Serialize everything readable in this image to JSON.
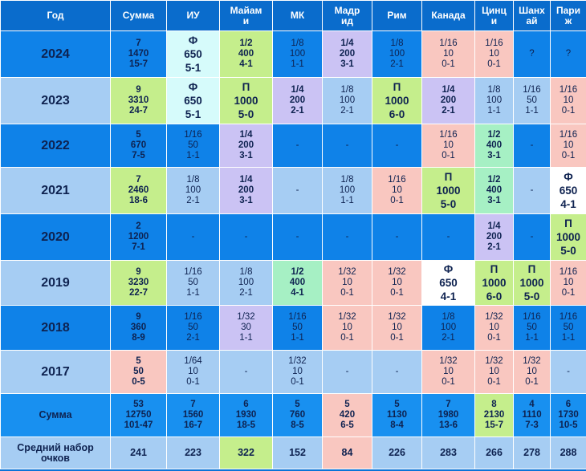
{
  "headers": [
    "Год",
    "Сумма",
    "ИУ",
    "Майам\nи",
    "МК",
    "Мадр\nид",
    "Рим",
    "Канада",
    "Цинц\nи",
    "Шанх\nай",
    "Пари\nж"
  ],
  "rows": [
    {
      "year": "2024",
      "tone": "dark",
      "cells": [
        {
          "t": "7\n1470\n15-7",
          "c": "dark",
          "w": "b"
        },
        {
          "t": "Ф\n650\n5-1",
          "c": "cyan",
          "w": "big"
        },
        {
          "t": "1/2\n400\n4-1",
          "c": "green",
          "w": "b"
        },
        {
          "t": "1/8\n100\n1-1",
          "c": "dark",
          "w": ""
        },
        {
          "t": "1/4\n200\n3-1",
          "c": "lav",
          "w": "b"
        },
        {
          "t": "1/8\n100\n2-1",
          "c": "dark",
          "w": ""
        },
        {
          "t": "1/16\n10\n0-1",
          "c": "pink",
          "w": ""
        },
        {
          "t": "1/16\n10\n0-1",
          "c": "pink",
          "w": ""
        },
        {
          "t": "?",
          "c": "dark",
          "w": ""
        },
        {
          "t": "?",
          "c": "dark",
          "w": ""
        }
      ]
    },
    {
      "year": "2023",
      "tone": "light",
      "cells": [
        {
          "t": "9\n3310\n24-7",
          "c": "green",
          "w": "b"
        },
        {
          "t": "Ф\n650\n5-1",
          "c": "cyan",
          "w": "big"
        },
        {
          "t": "П\n1000\n5-0",
          "c": "green",
          "w": "big"
        },
        {
          "t": "1/4\n200\n2-1",
          "c": "lav",
          "w": "b"
        },
        {
          "t": "1/8\n100\n2-1",
          "c": "light",
          "w": ""
        },
        {
          "t": "П\n1000\n6-0",
          "c": "green",
          "w": "big"
        },
        {
          "t": "1/4\n200\n2-1",
          "c": "lav",
          "w": "b"
        },
        {
          "t": "1/8\n100\n1-1",
          "c": "light",
          "w": ""
        },
        {
          "t": "1/16\n50\n1-1",
          "c": "light",
          "w": ""
        },
        {
          "t": "1/16\n10\n0-1",
          "c": "pink",
          "w": ""
        }
      ]
    },
    {
      "year": "2022",
      "tone": "dark",
      "cells": [
        {
          "t": "5\n670\n7-5",
          "c": "dark",
          "w": "b"
        },
        {
          "t": "1/16\n50\n1-1",
          "c": "dark",
          "w": ""
        },
        {
          "t": "1/4\n200\n3-1",
          "c": "lav",
          "w": "b"
        },
        {
          "t": "-",
          "c": "dark",
          "w": ""
        },
        {
          "t": "-",
          "c": "dark",
          "w": ""
        },
        {
          "t": "-",
          "c": "dark",
          "w": ""
        },
        {
          "t": "1/16\n10\n0-1",
          "c": "pink",
          "w": ""
        },
        {
          "t": "1/2\n400\n3-1",
          "c": "mint",
          "w": "b"
        },
        {
          "t": "-",
          "c": "dark",
          "w": ""
        },
        {
          "t": "1/16\n10\n0-1",
          "c": "pink",
          "w": ""
        }
      ]
    },
    {
      "year": "2021",
      "tone": "light",
      "cells": [
        {
          "t": "7\n2460\n18-6",
          "c": "green",
          "w": "b"
        },
        {
          "t": "1/8\n100\n2-1",
          "c": "light",
          "w": ""
        },
        {
          "t": "1/4\n200\n3-1",
          "c": "lav",
          "w": "b"
        },
        {
          "t": "-",
          "c": "light",
          "w": ""
        },
        {
          "t": "1/8\n100\n1-1",
          "c": "light",
          "w": ""
        },
        {
          "t": "1/16\n10\n0-1",
          "c": "pink",
          "w": ""
        },
        {
          "t": "П\n1000\n5-0",
          "c": "green",
          "w": "big"
        },
        {
          "t": "1/2\n400\n3-1",
          "c": "mint",
          "w": "b"
        },
        {
          "t": "-",
          "c": "light",
          "w": ""
        },
        {
          "t": "Ф\n650\n4-1",
          "c": "white",
          "w": "big"
        }
      ]
    },
    {
      "year": "2020",
      "tone": "dark",
      "cells": [
        {
          "t": "2\n1200\n7-1",
          "c": "dark",
          "w": "b"
        },
        {
          "t": "-",
          "c": "dark",
          "w": ""
        },
        {
          "t": "-",
          "c": "dark",
          "w": ""
        },
        {
          "t": "-",
          "c": "dark",
          "w": ""
        },
        {
          "t": "-",
          "c": "dark",
          "w": ""
        },
        {
          "t": "-",
          "c": "dark",
          "w": ""
        },
        {
          "t": "-",
          "c": "dark",
          "w": ""
        },
        {
          "t": "1/4\n200\n2-1",
          "c": "lav",
          "w": "b"
        },
        {
          "t": "-",
          "c": "dark",
          "w": ""
        },
        {
          "t": "П\n1000\n5-0",
          "c": "green",
          "w": "big"
        }
      ]
    },
    {
      "year": "2019",
      "tone": "light",
      "cells": [
        {
          "t": "9\n3230\n22-7",
          "c": "green",
          "w": "b"
        },
        {
          "t": "1/16\n50\n1-1",
          "c": "light",
          "w": ""
        },
        {
          "t": "1/8\n100\n2-1",
          "c": "light",
          "w": ""
        },
        {
          "t": "1/2\n400\n4-1",
          "c": "mint",
          "w": "b"
        },
        {
          "t": "1/32\n10\n0-1",
          "c": "pink",
          "w": ""
        },
        {
          "t": "1/32\n10\n0-1",
          "c": "pink",
          "w": ""
        },
        {
          "t": "Ф\n650\n4-1",
          "c": "white",
          "w": "big"
        },
        {
          "t": "П\n1000\n6-0",
          "c": "green",
          "w": "big"
        },
        {
          "t": "П\n1000\n5-0",
          "c": "green",
          "w": "big"
        },
        {
          "t": "1/16\n10\n0-1",
          "c": "pink",
          "w": ""
        }
      ]
    },
    {
      "year": "2018",
      "tone": "dark",
      "cells": [
        {
          "t": "9\n360\n8-9",
          "c": "dark",
          "w": "b"
        },
        {
          "t": "1/16\n50\n2-1",
          "c": "dark",
          "w": ""
        },
        {
          "t": "1/32\n30\n1-1",
          "c": "lav",
          "w": ""
        },
        {
          "t": "1/16\n50\n1-1",
          "c": "dark",
          "w": ""
        },
        {
          "t": "1/32\n10\n0-1",
          "c": "pink",
          "w": ""
        },
        {
          "t": "1/32\n10\n0-1",
          "c": "pink",
          "w": ""
        },
        {
          "t": "1/8\n100\n2-1",
          "c": "dark",
          "w": ""
        },
        {
          "t": "1/32\n10\n0-1",
          "c": "pink",
          "w": ""
        },
        {
          "t": "1/16\n50\n1-1",
          "c": "dark",
          "w": ""
        },
        {
          "t": "1/16\n50\n1-1",
          "c": "dark",
          "w": ""
        }
      ]
    },
    {
      "year": "2017",
      "tone": "light",
      "cells": [
        {
          "t": "5\n50\n0-5",
          "c": "pink",
          "w": "b"
        },
        {
          "t": "1/64\n10\n0-1",
          "c": "light",
          "w": ""
        },
        {
          "t": "-",
          "c": "light",
          "w": ""
        },
        {
          "t": "1/32\n10\n0-1",
          "c": "light",
          "w": ""
        },
        {
          "t": "-",
          "c": "light",
          "w": ""
        },
        {
          "t": "-",
          "c": "light",
          "w": ""
        },
        {
          "t": "1/32\n10\n0-1",
          "c": "pink",
          "w": ""
        },
        {
          "t": "1/32\n10\n0-1",
          "c": "pink",
          "w": ""
        },
        {
          "t": "1/32\n10\n0-1",
          "c": "pink",
          "w": ""
        },
        {
          "t": "-",
          "c": "light",
          "w": ""
        }
      ]
    }
  ],
  "sum_row": {
    "label": "Сумма",
    "cells": [
      {
        "t": "53\n12750\n101-47",
        "c": "sum"
      },
      {
        "t": "7\n1560\n16-7",
        "c": "sum"
      },
      {
        "t": "6\n1930\n18-5",
        "c": "sum"
      },
      {
        "t": "5\n760\n8-5",
        "c": "sum"
      },
      {
        "t": "5\n420\n6-5",
        "c": "pink"
      },
      {
        "t": "5\n1130\n8-4",
        "c": "sum"
      },
      {
        "t": "7\n1980\n13-6",
        "c": "sum"
      },
      {
        "t": "8\n2130\n15-7",
        "c": "green"
      },
      {
        "t": "4\n1110\n7-3",
        "c": "sum"
      },
      {
        "t": "6\n1730\n10-5",
        "c": "sum"
      }
    ]
  },
  "avg_row": {
    "label": "Средний набор\nочков",
    "cells": [
      {
        "t": "241",
        "c": "light"
      },
      {
        "t": "223",
        "c": "light"
      },
      {
        "t": "322",
        "c": "green"
      },
      {
        "t": "152",
        "c": "light"
      },
      {
        "t": "84",
        "c": "pink"
      },
      {
        "t": "226",
        "c": "light"
      },
      {
        "t": "283",
        "c": "light"
      },
      {
        "t": "266",
        "c": "light"
      },
      {
        "t": "278",
        "c": "light"
      },
      {
        "t": "288",
        "c": "light"
      }
    ]
  }
}
